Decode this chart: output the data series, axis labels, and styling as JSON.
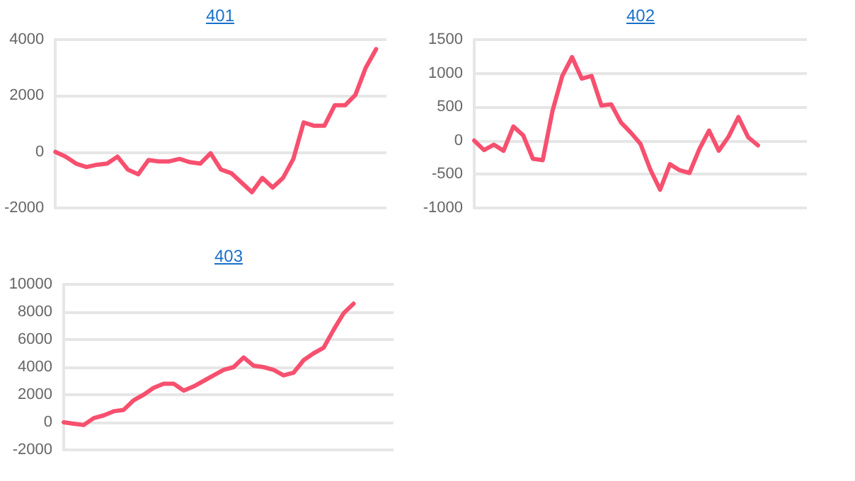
{
  "chart_data": [
    {
      "type": "line",
      "title": "401",
      "categories": [
        null,
        null,
        null,
        null,
        null,
        null,
        null,
        null,
        null,
        null,
        null,
        null,
        null,
        null,
        null,
        null,
        null,
        null,
        null,
        null,
        null,
        null,
        null,
        null,
        null,
        null,
        null,
        null,
        null,
        null,
        null,
        null,
        null
      ],
      "color": "#f7506f",
      "values": [
        0,
        -170,
        -420,
        -540,
        -460,
        -420,
        -170,
        -630,
        -800,
        -290,
        -340,
        -340,
        -250,
        -370,
        -420,
        -50,
        -630,
        -760,
        -1100,
        -1440,
        -930,
        -1270,
        -930,
        -250,
        1050,
        930,
        930,
        1660,
        1660,
        2030,
        3000,
        3660,
        null
      ],
      "ylim": [
        -2000,
        4000
      ],
      "yticks": [
        -2000,
        0,
        2000,
        4000
      ],
      "grid": "y",
      "tick_labels": "y"
    },
    {
      "type": "line",
      "title": "402",
      "categories": [
        null,
        null,
        null,
        null,
        null,
        null,
        null,
        null,
        null,
        null,
        null,
        null,
        null,
        null,
        null,
        null,
        null,
        null,
        null,
        null,
        null,
        null,
        null,
        null,
        null,
        null,
        null,
        null,
        null,
        null,
        null,
        null,
        null,
        null,
        null
      ],
      "color": "#f7506f",
      "values": [
        0,
        -140,
        -60,
        -150,
        210,
        80,
        -270,
        -290,
        440,
        960,
        1240,
        920,
        960,
        520,
        540,
        270,
        120,
        -50,
        -430,
        -730,
        -350,
        -440,
        -480,
        -130,
        150,
        -150,
        60,
        350,
        50,
        -70,
        null,
        null,
        null,
        null,
        null
      ],
      "ylim": [
        -1000,
        1500
      ],
      "yticks": [
        -1000,
        -500,
        0,
        500,
        1000,
        1500
      ],
      "grid": "y",
      "tick_labels": "y"
    },
    {
      "type": "line",
      "title": "403",
      "categories": [
        null,
        null,
        null,
        null,
        null,
        null,
        null,
        null,
        null,
        null,
        null,
        null,
        null,
        null,
        null,
        null,
        null,
        null,
        null,
        null,
        null,
        null,
        null,
        null,
        null,
        null,
        null,
        null,
        null,
        null,
        null,
        null,
        null,
        null
      ],
      "color": "#f7506f",
      "values": [
        0,
        -100,
        -200,
        300,
        500,
        800,
        900,
        1600,
        2000,
        2500,
        2800,
        2800,
        2300,
        2600,
        3000,
        3400,
        3800,
        4000,
        4700,
        4100,
        4000,
        3800,
        3400,
        3600,
        4500,
        5000,
        5400,
        6700,
        7900,
        8600,
        null,
        null,
        null,
        null
      ],
      "ylim": [
        -2000,
        10000
      ],
      "yticks": [
        -2000,
        0,
        2000,
        4000,
        6000,
        8000,
        10000
      ],
      "grid": "y",
      "tick_labels": "y"
    }
  ]
}
